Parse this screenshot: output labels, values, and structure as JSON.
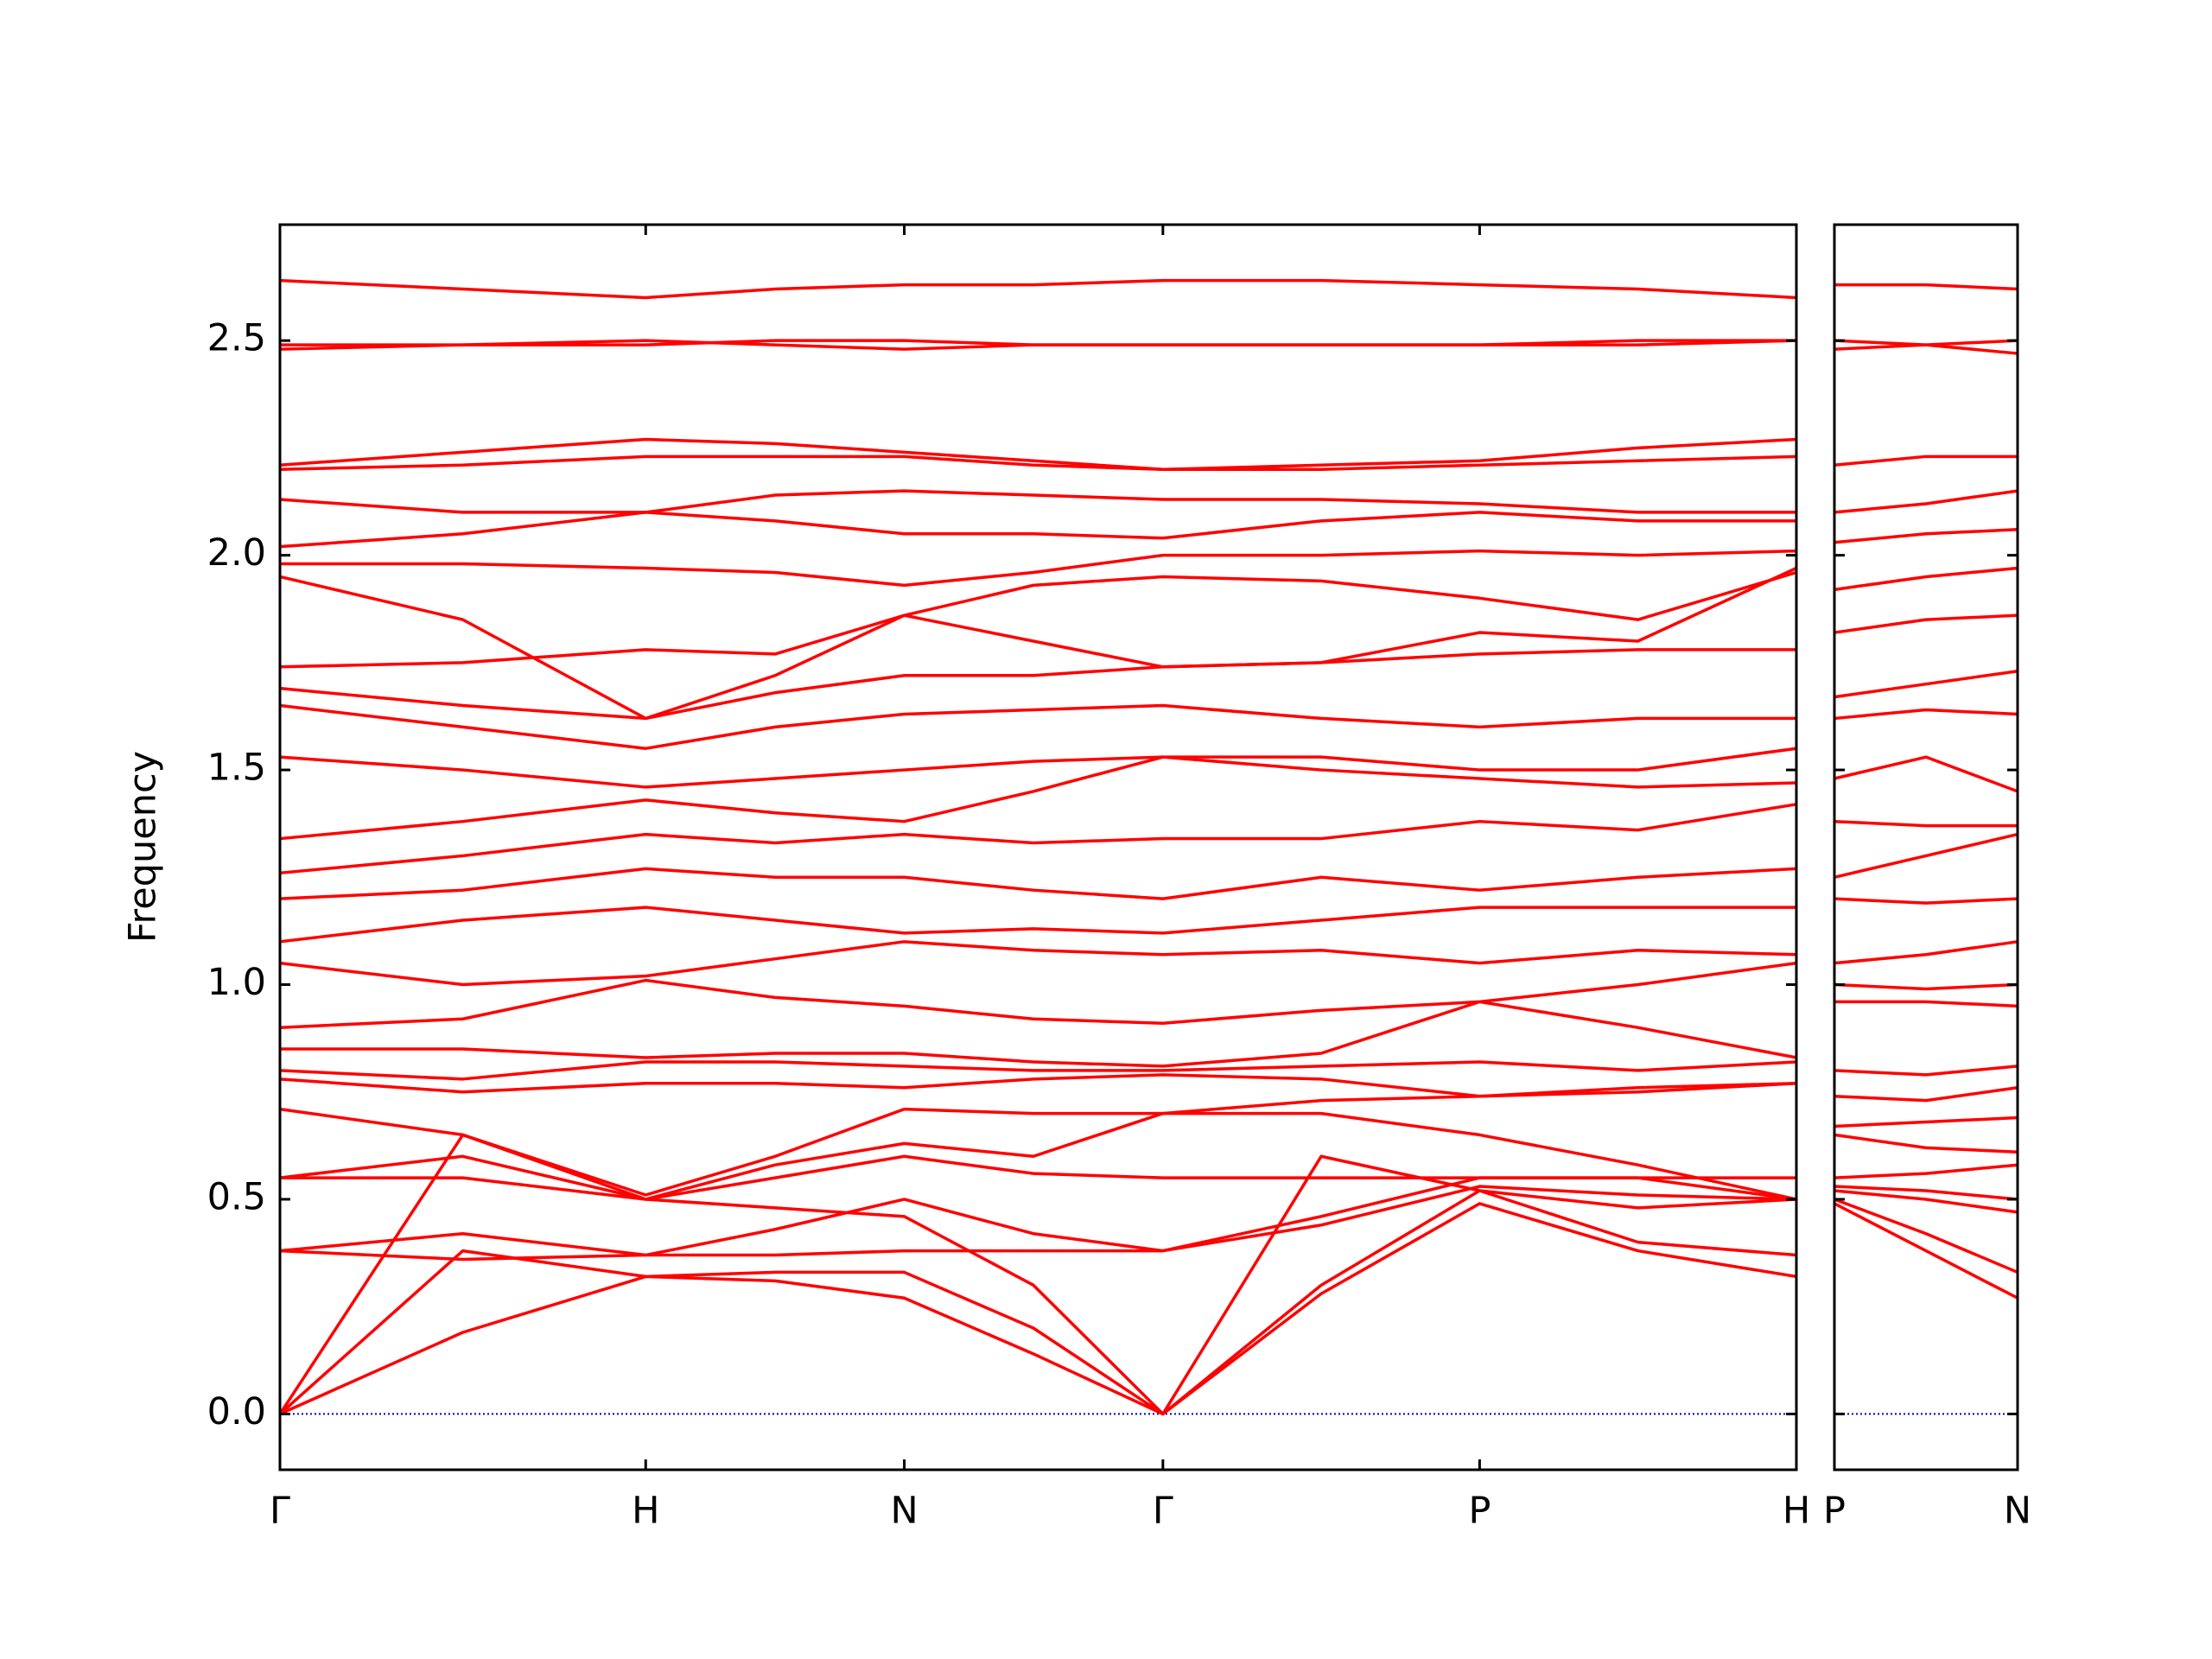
{
  "chart_data": [
    {
      "type": "line",
      "ylabel": "Frequency",
      "color": "#ff0000",
      "zero_line_color": "#0000cc",
      "xlim": [
        0,
        4.1463
      ],
      "xticks": [
        {
          "value": 0,
          "label": "Γ"
        },
        {
          "value": 1,
          "label": "H"
        },
        {
          "value": 1.7071,
          "label": "N"
        },
        {
          "value": 2.4142,
          "label": "Γ"
        },
        {
          "value": 3.2802,
          "label": "P"
        },
        {
          "value": 4.1463,
          "label": "H"
        }
      ],
      "ylim": [
        -0.13,
        2.77
      ],
      "yticks": [
        {
          "value": 0,
          "label": "0.0"
        },
        0.5,
        {
          "value": 1,
          "label": "1.0"
        },
        1.5,
        {
          "value": 2,
          "label": "2.0"
        },
        2.5
      ],
      "x": [
        0,
        0.5,
        1,
        1.354,
        1.7071,
        2.06,
        2.4142,
        2.847,
        3.2802,
        3.713,
        4.1463
      ],
      "series": [
        {
          "values": [
            0,
            0.19,
            0.32,
            0.31,
            0.27,
            0.14,
            0,
            0.28,
            0.49,
            0.38,
            0.32
          ]
        },
        {
          "values": [
            0,
            0.38,
            0.32,
            0.33,
            0.33,
            0.2,
            0,
            0.3,
            0.52,
            0.4,
            0.37
          ]
        },
        {
          "values": [
            0,
            0.65,
            0.5,
            0.48,
            0.46,
            0.3,
            0,
            0.6,
            0.52,
            0.48,
            0.5
          ]
        },
        {
          "values": [
            0.38,
            0.42,
            0.37,
            0.37,
            0.38,
            0.38,
            0.38,
            0.44,
            0.53,
            0.51,
            0.5
          ]
        },
        {
          "values": [
            0.38,
            0.36,
            0.37,
            0.43,
            0.5,
            0.42,
            0.38,
            0.46,
            0.55,
            0.55,
            0.5
          ]
        },
        {
          "values": [
            0.55,
            0.55,
            0.5,
            0.55,
            0.6,
            0.56,
            0.55,
            0.55,
            0.55,
            0.55,
            0.55
          ]
        },
        {
          "values": [
            0.55,
            0.6,
            0.5,
            0.58,
            0.63,
            0.6,
            0.7,
            0.7,
            0.65,
            0.58,
            0.5
          ]
        },
        {
          "values": [
            0.71,
            0.65,
            0.51,
            0.6,
            0.71,
            0.7,
            0.7,
            0.73,
            0.74,
            0.75,
            0.77
          ]
        },
        {
          "values": [
            0.78,
            0.75,
            0.77,
            0.77,
            0.76,
            0.78,
            0.79,
            0.78,
            0.74,
            0.76,
            0.77
          ]
        },
        {
          "values": [
            0.8,
            0.78,
            0.82,
            0.82,
            0.81,
            0.8,
            0.8,
            0.81,
            0.82,
            0.8,
            0.82
          ]
        },
        {
          "values": [
            0.85,
            0.85,
            0.83,
            0.84,
            0.84,
            0.82,
            0.81,
            0.84,
            0.96,
            0.9,
            0.83
          ]
        },
        {
          "values": [
            0.9,
            0.92,
            1.01,
            0.97,
            0.95,
            0.92,
            0.91,
            0.94,
            0.96,
            1.0,
            1.05
          ]
        },
        {
          "values": [
            1.05,
            1.0,
            1.02,
            1.06,
            1.1,
            1.08,
            1.07,
            1.08,
            1.05,
            1.08,
            1.07
          ]
        },
        {
          "values": [
            1.1,
            1.15,
            1.18,
            1.15,
            1.12,
            1.13,
            1.12,
            1.15,
            1.18,
            1.18,
            1.18
          ]
        },
        {
          "values": [
            1.2,
            1.22,
            1.27,
            1.25,
            1.25,
            1.22,
            1.2,
            1.25,
            1.22,
            1.25,
            1.27
          ]
        },
        {
          "values": [
            1.26,
            1.3,
            1.35,
            1.33,
            1.35,
            1.33,
            1.34,
            1.34,
            1.38,
            1.36,
            1.42
          ]
        },
        {
          "values": [
            1.34,
            1.38,
            1.43,
            1.4,
            1.38,
            1.45,
            1.53,
            1.5,
            1.48,
            1.46,
            1.47
          ]
        },
        {
          "values": [
            1.53,
            1.5,
            1.46,
            1.48,
            1.5,
            1.52,
            1.53,
            1.53,
            1.5,
            1.5,
            1.55
          ]
        },
        {
          "values": [
            1.65,
            1.6,
            1.55,
            1.6,
            1.63,
            1.64,
            1.65,
            1.62,
            1.6,
            1.62,
            1.62
          ]
        },
        {
          "values": [
            1.69,
            1.65,
            1.62,
            1.68,
            1.72,
            1.72,
            1.74,
            1.75,
            1.77,
            1.78,
            1.78
          ]
        },
        {
          "values": [
            1.74,
            1.75,
            1.78,
            1.77,
            1.86,
            1.8,
            1.74,
            1.75,
            1.82,
            1.8,
            1.97
          ]
        },
        {
          "values": [
            1.95,
            1.85,
            1.62,
            1.72,
            1.86,
            1.93,
            1.95,
            1.94,
            1.9,
            1.85,
            1.96
          ]
        },
        {
          "values": [
            1.98,
            1.98,
            1.97,
            1.96,
            1.93,
            1.96,
            2.0,
            2.0,
            2.01,
            2.0,
            2.01
          ]
        },
        {
          "values": [
            2.02,
            2.05,
            2.1,
            2.08,
            2.05,
            2.05,
            2.04,
            2.08,
            2.1,
            2.08,
            2.08
          ]
        },
        {
          "values": [
            2.13,
            2.1,
            2.1,
            2.14,
            2.15,
            2.14,
            2.13,
            2.13,
            2.12,
            2.1,
            2.1
          ]
        },
        {
          "values": [
            2.2,
            2.21,
            2.23,
            2.23,
            2.23,
            2.21,
            2.2,
            2.2,
            2.21,
            2.22,
            2.23
          ]
        },
        {
          "values": [
            2.21,
            2.24,
            2.27,
            2.26,
            2.24,
            2.22,
            2.2,
            2.21,
            2.22,
            2.25,
            2.27
          ]
        },
        {
          "values": [
            2.48,
            2.49,
            2.5,
            2.49,
            2.48,
            2.49,
            2.49,
            2.49,
            2.49,
            2.5,
            2.5
          ]
        },
        {
          "values": [
            2.49,
            2.49,
            2.49,
            2.5,
            2.5,
            2.49,
            2.49,
            2.49,
            2.49,
            2.49,
            2.5
          ]
        },
        {
          "values": [
            2.64,
            2.62,
            2.6,
            2.62,
            2.63,
            2.63,
            2.64,
            2.64,
            2.63,
            2.62,
            2.6
          ]
        }
      ]
    },
    {
      "type": "line",
      "color": "#ff0000",
      "xlim": [
        0,
        0.5
      ],
      "xticks": [
        {
          "value": 0,
          "label": "P"
        },
        {
          "value": 0.5,
          "label": "N"
        }
      ],
      "x": [
        0,
        0.25,
        0.5
      ],
      "series": [
        {
          "values": [
            0.49,
            0.38,
            0.27
          ]
        },
        {
          "values": [
            0.5,
            0.42,
            0.33
          ]
        },
        {
          "values": [
            0.52,
            0.5,
            0.47
          ]
        },
        {
          "values": [
            0.53,
            0.52,
            0.5
          ]
        },
        {
          "values": [
            0.55,
            0.56,
            0.58
          ]
        },
        {
          "values": [
            0.65,
            0.62,
            0.61
          ]
        },
        {
          "values": [
            0.67,
            0.68,
            0.69
          ]
        },
        {
          "values": [
            0.74,
            0.73,
            0.76
          ]
        },
        {
          "values": [
            0.8,
            0.79,
            0.81
          ]
        },
        {
          "values": [
            0.96,
            0.96,
            0.95
          ]
        },
        {
          "values": [
            1.0,
            0.99,
            1.0
          ]
        },
        {
          "values": [
            1.05,
            1.07,
            1.1
          ]
        },
        {
          "values": [
            1.2,
            1.19,
            1.2
          ]
        },
        {
          "values": [
            1.25,
            1.3,
            1.35
          ]
        },
        {
          "values": [
            1.38,
            1.37,
            1.37
          ]
        },
        {
          "values": [
            1.48,
            1.53,
            1.45
          ]
        },
        {
          "values": [
            1.62,
            1.64,
            1.63
          ]
        },
        {
          "values": [
            1.67,
            1.7,
            1.73
          ]
        },
        {
          "values": [
            1.82,
            1.85,
            1.86
          ]
        },
        {
          "values": [
            1.92,
            1.95,
            1.97
          ]
        },
        {
          "values": [
            2.03,
            2.05,
            2.06
          ]
        },
        {
          "values": [
            2.1,
            2.12,
            2.15
          ]
        },
        {
          "values": [
            2.21,
            2.23,
            2.23
          ]
        },
        {
          "values": [
            2.48,
            2.49,
            2.5
          ]
        },
        {
          "values": [
            2.5,
            2.49,
            2.47
          ]
        },
        {
          "values": [
            2.63,
            2.63,
            2.62
          ]
        }
      ]
    }
  ]
}
